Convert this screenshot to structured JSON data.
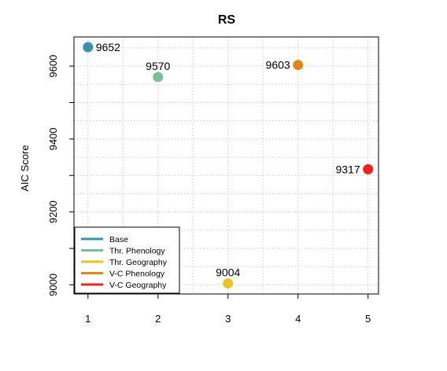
{
  "chart_data": {
    "type": "scatter",
    "title": "RS",
    "xlabel": "",
    "ylabel": "AIC Score",
    "xlim": [
      0.8,
      5.15
    ],
    "ylim": [
      8975,
      9680
    ],
    "x_ticks": [
      1,
      2,
      3,
      4,
      5
    ],
    "y_ticks": [
      9000,
      9200,
      9400,
      9600
    ],
    "grid": true,
    "legend_position": "bottom-left",
    "points": [
      {
        "name": "Base",
        "x": 1,
        "y": 9652,
        "label": "9652",
        "label_side": "right",
        "color": "#3A92AD"
      },
      {
        "name": "Thr. Phenology",
        "x": 2,
        "y": 9570,
        "label": "9570",
        "label_side": "top",
        "color": "#7BBE9A"
      },
      {
        "name": "Thr. Geography",
        "x": 3,
        "y": 9004,
        "label": "9004",
        "label_side": "top",
        "color": "#E8C425"
      },
      {
        "name": "V-C Phenology",
        "x": 4,
        "y": 9603,
        "label": "9603",
        "label_side": "left",
        "color": "#E1861A"
      },
      {
        "name": "V-C Geography",
        "x": 5,
        "y": 9317,
        "label": "9317",
        "label_side": "left",
        "color": "#EE2222"
      }
    ]
  }
}
